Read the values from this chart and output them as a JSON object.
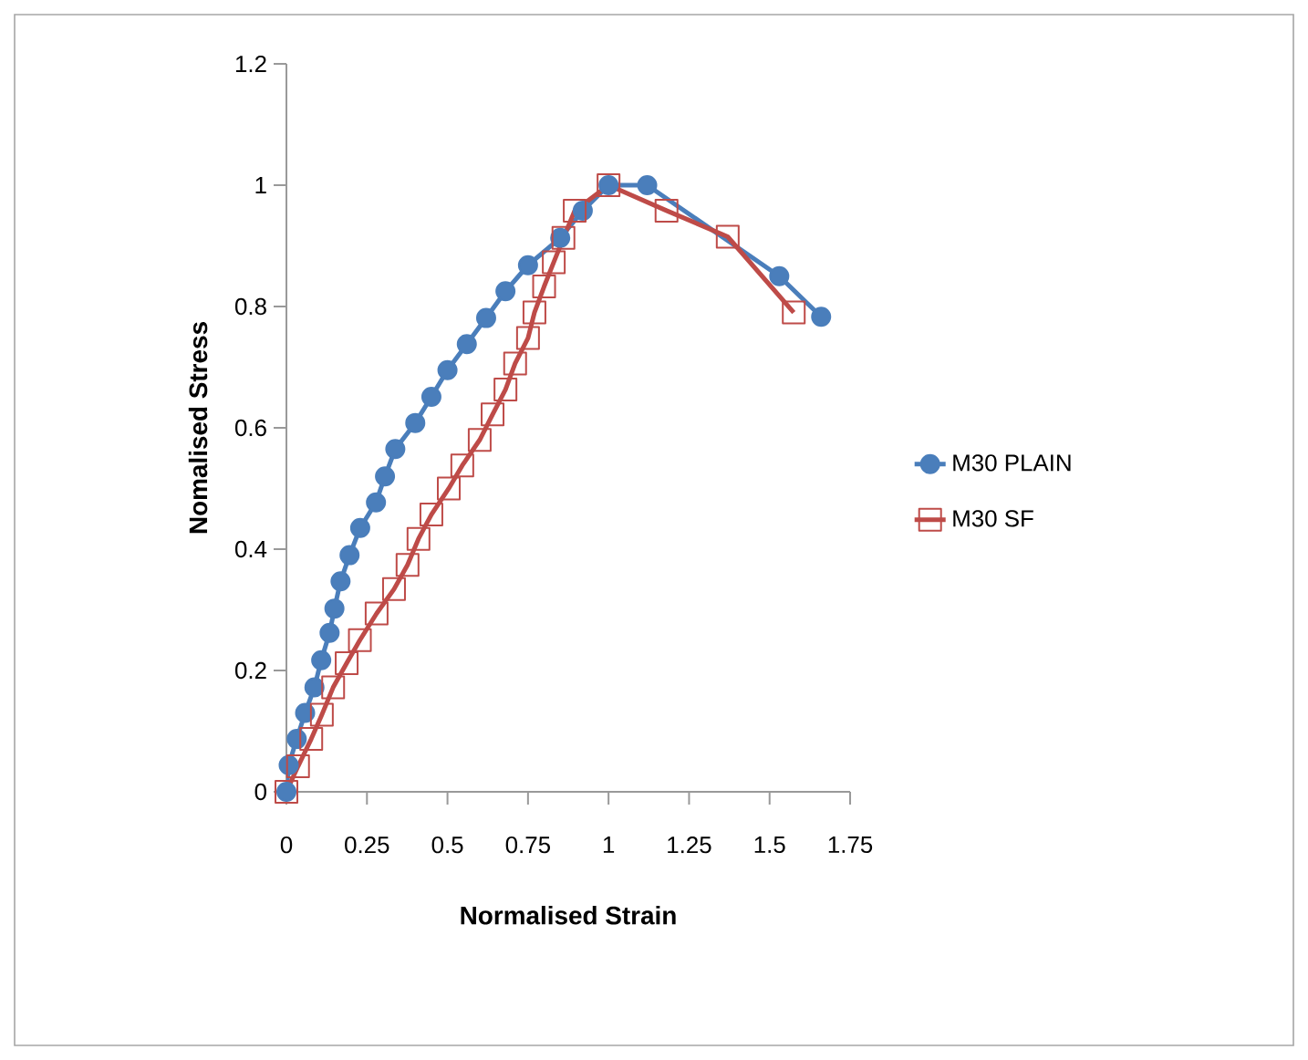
{
  "chart_data": {
    "type": "line",
    "xlabel": "Normalised Strain",
    "ylabel": "Nomalised Stress",
    "xlim": [
      0,
      1.75
    ],
    "ylim": [
      0,
      1.2
    ],
    "xticks": [
      0,
      0.25,
      {
        "value": 0.5,
        "label": "0.5"
      },
      0.75,
      1,
      1.25,
      {
        "value": 1.5,
        "label": "1.5"
      },
      1.75
    ],
    "yticks": [
      0,
      0.2,
      0.4,
      0.6,
      0.8,
      1,
      1.2
    ],
    "grid": false,
    "legend": "right",
    "series": [
      {
        "name": "M30 PLAIN",
        "color": "#4a7ebb",
        "marker": "circle",
        "x": [
          0,
          0.007,
          0.032,
          0.058,
          0.087,
          0.108,
          0.134,
          0.149,
          0.168,
          0.196,
          0.229,
          0.278,
          0.306,
          0.338,
          0.4,
          0.45,
          0.5,
          0.56,
          0.62,
          0.68,
          0.75,
          0.85,
          0.92,
          1.0,
          1.12,
          1.53,
          1.66
        ],
        "values": [
          0,
          0.044,
          0.087,
          0.13,
          0.172,
          0.217,
          0.262,
          0.302,
          0.347,
          0.39,
          0.435,
          0.477,
          0.52,
          0.565,
          0.608,
          0.651,
          0.695,
          0.738,
          0.781,
          0.825,
          0.868,
          0.913,
          0.958,
          1.0,
          1.0,
          0.85,
          0.783
        ]
      },
      {
        "name": "M30 SF",
        "color": "#be4b48",
        "marker": "square",
        "x": [
          0,
          0.036,
          0.077,
          0.11,
          0.145,
          0.187,
          0.228,
          0.28,
          0.334,
          0.376,
          0.41,
          0.45,
          0.504,
          0.546,
          0.6,
          0.64,
          0.68,
          0.71,
          0.75,
          0.77,
          0.8,
          0.83,
          0.86,
          0.895,
          1.0,
          1.18,
          1.37,
          1.575
        ],
        "values": [
          0,
          0.042,
          0.087,
          0.127,
          0.172,
          0.212,
          0.25,
          0.294,
          0.334,
          0.374,
          0.417,
          0.457,
          0.5,
          0.538,
          0.58,
          0.622,
          0.663,
          0.706,
          0.748,
          0.79,
          0.833,
          0.873,
          0.913,
          0.958,
          1.0,
          0.958,
          0.915,
          0.79
        ]
      }
    ]
  }
}
